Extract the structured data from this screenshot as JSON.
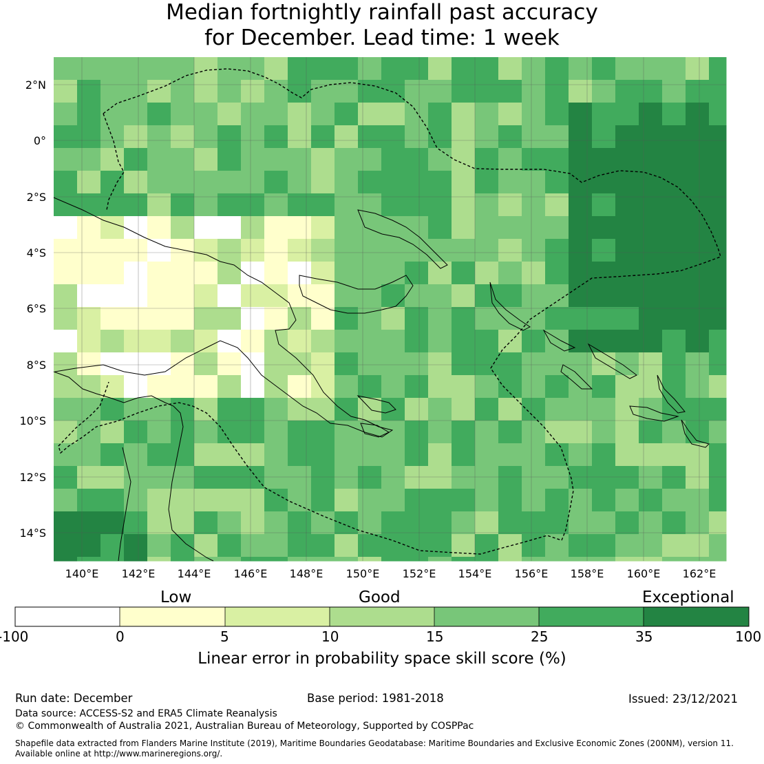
{
  "title": {
    "line1": "Median fortnightly rainfall past accuracy",
    "line2": "for December. Lead time: 1 week"
  },
  "map": {
    "lat_labels": [
      "2°N",
      "0°",
      "2°S",
      "4°S",
      "6°S",
      "8°S",
      "10°S",
      "12°S",
      "14°S"
    ],
    "lon_labels": [
      "140°E",
      "142°E",
      "144°E",
      "146°E",
      "148°E",
      "150°E",
      "152°E",
      "154°E",
      "156°E",
      "158°E",
      "160°E",
      "162°E"
    ]
  },
  "colorbar": {
    "categories": [
      "Low",
      "Good",
      "Exceptional"
    ],
    "ticks": [
      "-100",
      "0",
      "5",
      "10",
      "15",
      "25",
      "35",
      "100"
    ],
    "colors": [
      "#ffffff",
      "#ffffcc",
      "#d9f0a3",
      "#addd8e",
      "#78c679",
      "#41ab5d",
      "#238443"
    ],
    "label": "Linear error in probability space skill score (%)"
  },
  "footer": {
    "run_date": "Run date: December",
    "base_period": "Base period: 1981-2018",
    "issued": "Issued: 23/12/2021",
    "data_source": "Data source: ACCESS-S2 and ERA5 Climate Reanalysis",
    "copyright": "© Commonwealth of Australia 2021, Australian Bureau of Meteorology, Supported by COSPPac",
    "shapefile1": "Shapefile data extracted from Flanders Marine Institute (2019), Maritime Boundaries Geodatabase: Maritime Boundaries and Exclusive Economic Zones (200NM), version 11.",
    "shapefile2": "Available online at http://www.marineregions.org/."
  }
}
